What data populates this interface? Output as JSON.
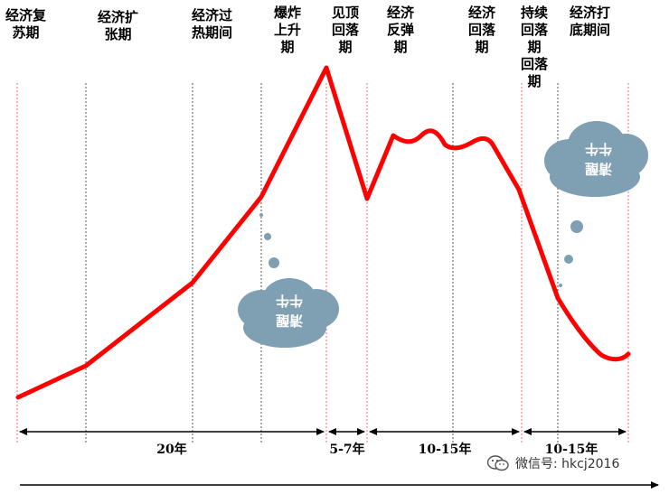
{
  "phases": [
    {
      "id": "recovery",
      "label": "经济复\n苏期"
    },
    {
      "id": "expansion",
      "label": "经济扩\n张期"
    },
    {
      "id": "overheat",
      "label": "经济过\n热期间"
    },
    {
      "id": "boom",
      "label": "爆炸\n上升\n期"
    },
    {
      "id": "peak",
      "label": "见顶\n回落\n期"
    },
    {
      "id": "rebound",
      "label": "经济\n反弹\n期"
    },
    {
      "id": "decline",
      "label": "经济\n回落\n期"
    },
    {
      "id": "sustained",
      "label": "持续\n回落\n期\n回落\n期"
    },
    {
      "id": "bottoming",
      "label": "经济打\n底期间"
    }
  ],
  "spans": [
    {
      "id": "span-20",
      "label": "20年"
    },
    {
      "id": "span-5-7",
      "label": "5-7年"
    },
    {
      "id": "span-10-15-a",
      "label": "10-15年"
    },
    {
      "id": "span-10-15-b",
      "label": "10-15年"
    }
  ],
  "clouds": [
    {
      "id": "thought-cloud-left",
      "lines": [
        "牛牛",
        "清醒"
      ]
    },
    {
      "id": "thought-cloud-right",
      "lines": [
        "牛牛",
        "清醒"
      ]
    }
  ],
  "watermark": {
    "text": "微信号: hkcj2016"
  },
  "colors": {
    "curve": "#ff0000",
    "cloud": "#7f9fb3",
    "divider_red": "#ff6b6b",
    "divider_black": "#555555",
    "axis": "#000000"
  }
}
